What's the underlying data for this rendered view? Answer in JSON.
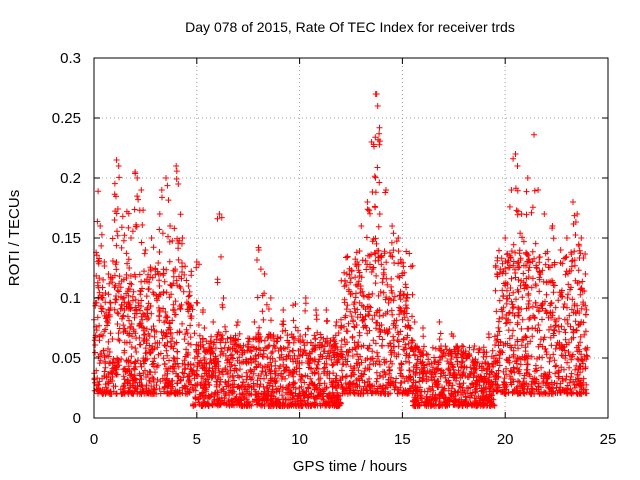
{
  "chart_data": {
    "type": "scatter",
    "title": "Day 078 of 2015, Rate Of TEC Index for receiver trds",
    "xlabel": "GPS time / hours",
    "ylabel": "ROTI / TECUs",
    "xlim": [
      0,
      25
    ],
    "ylim": [
      0,
      0.3
    ],
    "xticks": [
      0,
      5,
      10,
      15,
      20,
      25
    ],
    "xtick_labels": [
      "0",
      "5",
      "10",
      "15",
      "20",
      "25"
    ],
    "yticks": [
      0,
      0.05,
      0.1,
      0.15,
      0.2,
      0.25,
      0.3
    ],
    "ytick_labels": [
      "0",
      "0.05",
      "0.1",
      "0.15",
      "0.2",
      "0.25",
      "0.3"
    ],
    "grid": true,
    "marker": "+",
    "color": "#ff0000",
    "series": [
      {
        "name": "ROTI",
        "points": [
          [
            0.1,
            0.138
          ],
          [
            0.2,
            0.189
          ],
          [
            0.3,
            0.16
          ],
          [
            0.5,
            0.13
          ],
          [
            0.7,
            0.12
          ],
          [
            1.0,
            0.165
          ],
          [
            1.1,
            0.215
          ],
          [
            1.2,
            0.21
          ],
          [
            1.4,
            0.168
          ],
          [
            1.6,
            0.172
          ],
          [
            1.8,
            0.15
          ],
          [
            2.0,
            0.205
          ],
          [
            2.1,
            0.2
          ],
          [
            2.3,
            0.19
          ],
          [
            2.5,
            0.14
          ],
          [
            2.8,
            0.15
          ],
          [
            3.2,
            0.17
          ],
          [
            3.3,
            0.19
          ],
          [
            3.5,
            0.2
          ],
          [
            3.7,
            0.16
          ],
          [
            4.0,
            0.21
          ],
          [
            4.1,
            0.195
          ],
          [
            4.3,
            0.15
          ],
          [
            4.6,
            0.11
          ],
          [
            5.0,
            0.13
          ],
          [
            5.3,
            0.09
          ],
          [
            5.8,
            0.08
          ],
          [
            6.1,
            0.17
          ],
          [
            6.3,
            0.1
          ],
          [
            7.0,
            0.08
          ],
          [
            7.8,
            0.08
          ],
          [
            8.0,
            0.142
          ],
          [
            8.3,
            0.12
          ],
          [
            8.6,
            0.1
          ],
          [
            9.2,
            0.09
          ],
          [
            9.8,
            0.095
          ],
          [
            10.3,
            0.1
          ],
          [
            10.8,
            0.09
          ],
          [
            11.3,
            0.09
          ],
          [
            11.8,
            0.08
          ],
          [
            12.3,
            0.12
          ],
          [
            12.8,
            0.13
          ],
          [
            13.0,
            0.16
          ],
          [
            13.3,
            0.18
          ],
          [
            13.5,
            0.23
          ],
          [
            13.6,
            0.228
          ],
          [
            13.7,
            0.27
          ],
          [
            13.75,
            0.27
          ],
          [
            13.8,
            0.26
          ],
          [
            13.9,
            0.17
          ],
          [
            14.2,
            0.19
          ],
          [
            14.5,
            0.16
          ],
          [
            14.8,
            0.15
          ],
          [
            15.2,
            0.1
          ],
          [
            15.6,
            0.08
          ],
          [
            16.0,
            0.075
          ],
          [
            16.8,
            0.08
          ],
          [
            17.4,
            0.07
          ],
          [
            17.9,
            0.06
          ],
          [
            18.5,
            0.06
          ],
          [
            19.2,
            0.07
          ],
          [
            19.6,
            0.12
          ],
          [
            20.0,
            0.15
          ],
          [
            20.3,
            0.19
          ],
          [
            20.5,
            0.22
          ],
          [
            20.6,
            0.21
          ],
          [
            20.8,
            0.17
          ],
          [
            21.1,
            0.2
          ],
          [
            21.4,
            0.236
          ],
          [
            21.6,
            0.19
          ],
          [
            21.9,
            0.17
          ],
          [
            22.3,
            0.16
          ],
          [
            22.7,
            0.14
          ],
          [
            23.0,
            0.15
          ],
          [
            23.3,
            0.18
          ],
          [
            23.5,
            0.17
          ],
          [
            23.7,
            0.15
          ],
          [
            23.9,
            0.12
          ]
        ]
      }
    ],
    "density_bands": [
      {
        "x0": 0,
        "x1": 2.5,
        "base_min": 0.02,
        "base_max": 0.12
      },
      {
        "x0": 2.5,
        "x1": 4.8,
        "base_min": 0.02,
        "base_max": 0.13
      },
      {
        "x0": 4.8,
        "x1": 12.0,
        "base_min": 0.01,
        "base_max": 0.07
      },
      {
        "x0": 12.0,
        "x1": 15.5,
        "base_min": 0.02,
        "base_max": 0.14
      },
      {
        "x0": 15.5,
        "x1": 19.5,
        "base_min": 0.01,
        "base_max": 0.06
      },
      {
        "x0": 19.5,
        "x1": 24.0,
        "base_min": 0.02,
        "base_max": 0.14
      }
    ]
  }
}
